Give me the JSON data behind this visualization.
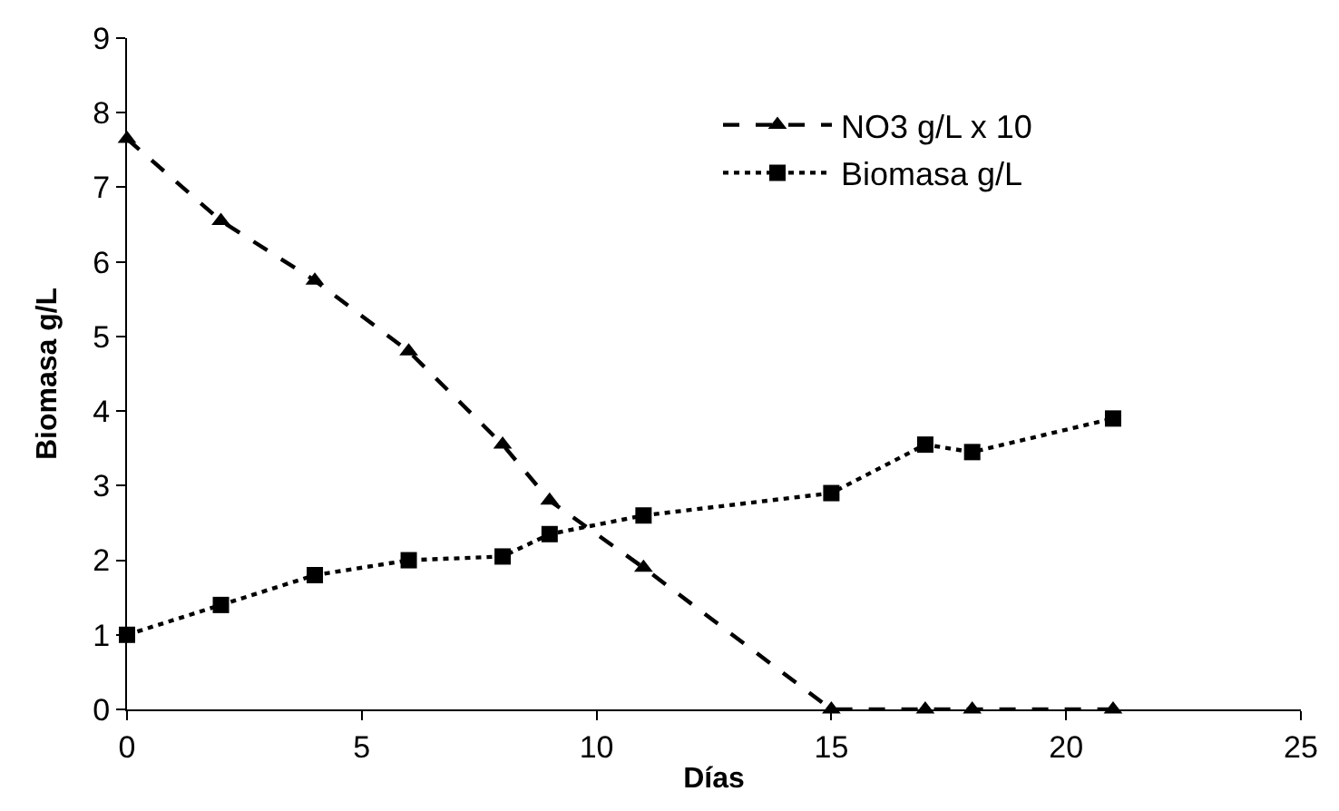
{
  "chart_data": {
    "type": "line",
    "xlabel": "Días",
    "ylabel": "Biomasa g/L",
    "x": [
      0,
      2,
      4,
      6,
      8,
      9,
      11,
      15,
      17,
      18,
      21
    ],
    "series": [
      {
        "name": "NO3 g/L x 10",
        "color": "#000000",
        "marker": "triangle",
        "line_style": "dashed",
        "values": [
          7.65,
          6.55,
          5.75,
          4.8,
          3.55,
          2.8,
          1.9,
          0,
          0,
          0,
          0
        ]
      },
      {
        "name": "Biomasa g/L",
        "color": "#000000",
        "marker": "square",
        "line_style": "dotted",
        "values": [
          1.0,
          1.4,
          1.8,
          2.0,
          2.05,
          2.35,
          2.6,
          2.9,
          3.55,
          3.45,
          3.9
        ]
      }
    ],
    "xlim": [
      0,
      25
    ],
    "xticks": [
      0,
      5,
      10,
      15,
      20,
      25
    ],
    "ylim": [
      0,
      9
    ],
    "yticks": [
      0,
      1,
      2,
      3,
      4,
      5,
      6,
      7,
      8,
      9
    ],
    "legend": "top right"
  }
}
